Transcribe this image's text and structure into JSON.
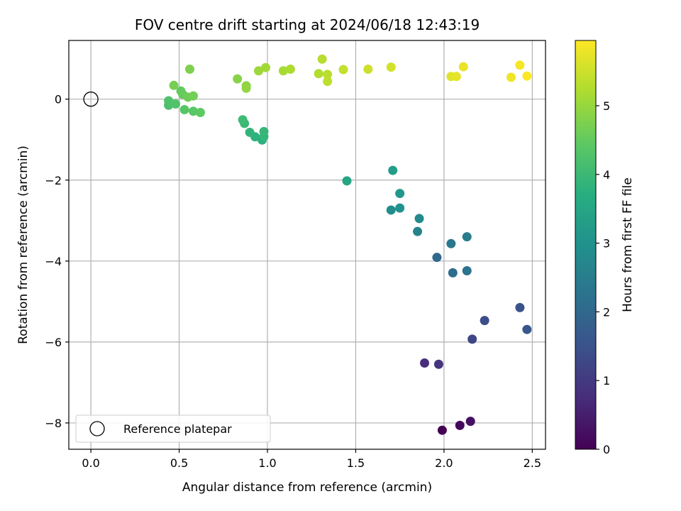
{
  "chart_data": {
    "type": "scatter",
    "title": "FOV centre drift starting at 2024/06/18 12:43:19",
    "xlabel": "Angular distance from reference (arcmin)",
    "ylabel": "Rotation from reference (arcmin)",
    "xlim": [
      -0.125,
      2.575
    ],
    "ylim": [
      -8.65,
      1.45
    ],
    "xticks": [
      0.0,
      0.5,
      1.0,
      1.5,
      2.0,
      2.5
    ],
    "xtick_labels": [
      "0.0",
      "0.5",
      "1.0",
      "1.5",
      "2.0",
      "2.5"
    ],
    "yticks": [
      0,
      -2,
      -4,
      -6,
      -8
    ],
    "ytick_labels": [
      "0",
      "−2",
      "−4",
      "−6",
      "−8"
    ],
    "grid": true,
    "colormap": "viridis",
    "colorbar": {
      "label": "Hours from first FF file",
      "range": [
        0,
        5.95
      ],
      "ticks": [
        0,
        1,
        2,
        3,
        4,
        5
      ],
      "tick_labels": [
        "0",
        "1",
        "2",
        "3",
        "4",
        "5"
      ]
    },
    "legend": {
      "position": "lower-left",
      "entries": [
        "Reference platepar"
      ]
    },
    "reference_point": {
      "x": 0.0,
      "y": 0.0,
      "label": "Reference platepar"
    },
    "points": [
      {
        "x": 1.99,
        "y": -8.18,
        "h": 0.0
      },
      {
        "x": 2.09,
        "y": -8.06,
        "h": 0.12
      },
      {
        "x": 2.15,
        "y": -7.96,
        "h": 0.25
      },
      {
        "x": 1.89,
        "y": -6.52,
        "h": 0.75
      },
      {
        "x": 1.97,
        "y": -6.55,
        "h": 0.88
      },
      {
        "x": 2.16,
        "y": -5.93,
        "h": 1.25
      },
      {
        "x": 2.23,
        "y": -5.47,
        "h": 1.38
      },
      {
        "x": 2.43,
        "y": -5.15,
        "h": 1.5
      },
      {
        "x": 2.47,
        "y": -5.69,
        "h": 1.62
      },
      {
        "x": 1.96,
        "y": -3.91,
        "h": 2.0
      },
      {
        "x": 2.05,
        "y": -4.29,
        "h": 2.12
      },
      {
        "x": 2.13,
        "y": -4.24,
        "h": 2.25
      },
      {
        "x": 2.04,
        "y": -3.57,
        "h": 2.38
      },
      {
        "x": 2.13,
        "y": -3.4,
        "h": 2.5
      },
      {
        "x": 1.85,
        "y": -3.27,
        "h": 2.62
      },
      {
        "x": 1.86,
        "y": -2.95,
        "h": 2.75
      },
      {
        "x": 1.7,
        "y": -2.74,
        "h": 2.88
      },
      {
        "x": 1.75,
        "y": -2.69,
        "h": 3.0
      },
      {
        "x": 1.75,
        "y": -2.33,
        "h": 3.12
      },
      {
        "x": 1.71,
        "y": -1.76,
        "h": 3.25
      },
      {
        "x": 1.45,
        "y": -2.02,
        "h": 3.5
      },
      {
        "x": 0.97,
        "y": -1.01,
        "h": 3.75
      },
      {
        "x": 0.93,
        "y": -0.93,
        "h": 3.8
      },
      {
        "x": 0.9,
        "y": -0.82,
        "h": 3.85
      },
      {
        "x": 0.98,
        "y": -0.92,
        "h": 3.9
      },
      {
        "x": 0.98,
        "y": -0.8,
        "h": 3.95
      },
      {
        "x": 0.87,
        "y": -0.6,
        "h": 4.0
      },
      {
        "x": 0.86,
        "y": -0.51,
        "h": 4.05
      },
      {
        "x": 0.44,
        "y": -0.15,
        "h": 4.2
      },
      {
        "x": 0.44,
        "y": -0.04,
        "h": 4.25
      },
      {
        "x": 0.48,
        "y": -0.12,
        "h": 4.3
      },
      {
        "x": 0.53,
        "y": -0.26,
        "h": 4.35
      },
      {
        "x": 0.58,
        "y": -0.3,
        "h": 4.4
      },
      {
        "x": 0.62,
        "y": -0.33,
        "h": 4.45
      },
      {
        "x": 0.51,
        "y": 0.2,
        "h": 4.5
      },
      {
        "x": 0.52,
        "y": 0.12,
        "h": 4.55
      },
      {
        "x": 0.55,
        "y": 0.05,
        "h": 4.6
      },
      {
        "x": 0.58,
        "y": 0.08,
        "h": 4.65
      },
      {
        "x": 0.47,
        "y": 0.34,
        "h": 4.7
      },
      {
        "x": 0.56,
        "y": 0.74,
        "h": 4.75
      },
      {
        "x": 0.83,
        "y": 0.5,
        "h": 4.85
      },
      {
        "x": 0.88,
        "y": 0.33,
        "h": 4.9
      },
      {
        "x": 0.88,
        "y": 0.27,
        "h": 4.95
      },
      {
        "x": 0.95,
        "y": 0.7,
        "h": 5.05
      },
      {
        "x": 0.99,
        "y": 0.78,
        "h": 5.1
      },
      {
        "x": 1.09,
        "y": 0.7,
        "h": 5.15
      },
      {
        "x": 1.13,
        "y": 0.74,
        "h": 5.2
      },
      {
        "x": 1.29,
        "y": 0.63,
        "h": 5.25
      },
      {
        "x": 1.31,
        "y": 0.99,
        "h": 5.3
      },
      {
        "x": 1.34,
        "y": 0.61,
        "h": 5.32
      },
      {
        "x": 1.34,
        "y": 0.44,
        "h": 5.35
      },
      {
        "x": 1.43,
        "y": 0.73,
        "h": 5.42
      },
      {
        "x": 1.57,
        "y": 0.74,
        "h": 5.5
      },
      {
        "x": 1.7,
        "y": 0.79,
        "h": 5.55
      },
      {
        "x": 2.04,
        "y": 0.56,
        "h": 5.68
      },
      {
        "x": 2.07,
        "y": 0.56,
        "h": 5.72
      },
      {
        "x": 2.11,
        "y": 0.8,
        "h": 5.76
      },
      {
        "x": 2.38,
        "y": 0.54,
        "h": 5.82
      },
      {
        "x": 2.43,
        "y": 0.84,
        "h": 5.88
      },
      {
        "x": 2.47,
        "y": 0.57,
        "h": 5.93
      }
    ]
  }
}
